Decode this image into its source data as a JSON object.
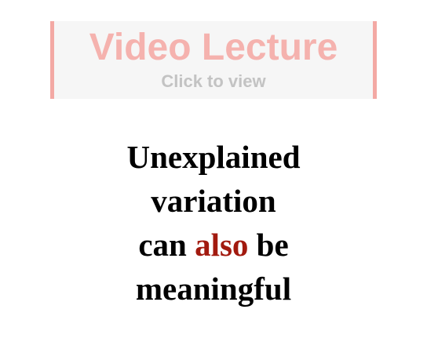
{
  "video_banner": {
    "title": "Video Lecture",
    "subtitle": "Click to view",
    "colors": {
      "border": "#f3a9a4",
      "title": "#f5b2ae",
      "subtitle": "#c3c3c3",
      "background": "#f6f6f6"
    }
  },
  "headline": {
    "line1": "Unexplained",
    "line2": "variation",
    "line3_before": "can",
    "line3_emphasis": "also",
    "line3_after": "be",
    "line4": "meaningful",
    "colors": {
      "text": "#000000",
      "emphasis": "#a21a0f"
    }
  }
}
